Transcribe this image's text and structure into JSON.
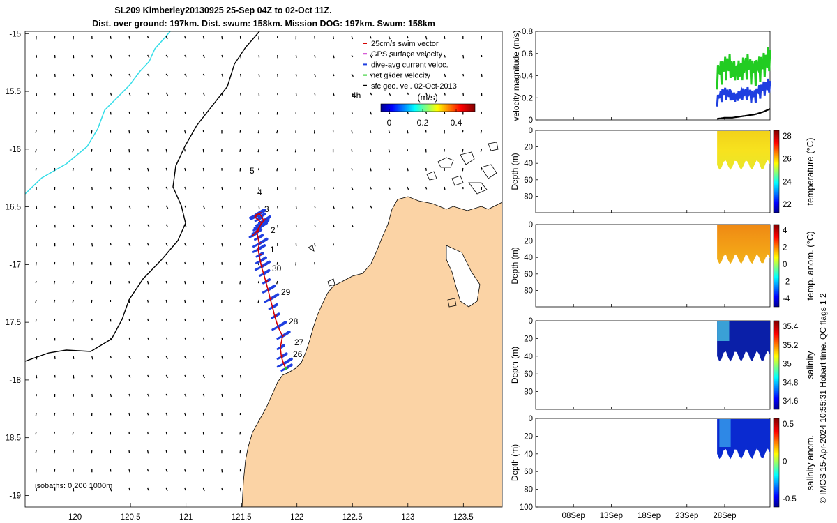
{
  "title_line1": "SL209 Kimberley20130925 25-Sep 04Z to 02-Oct 11Z.",
  "title_line2": "Dist. over ground: 197km. Dist. swum: 158km. Mission DOG: 197km. Swum: 158km",
  "map": {
    "lon_ticks": [
      "120",
      "120.5",
      "121",
      "121.5",
      "122",
      "122.5",
      "123",
      "123.5"
    ],
    "lat_ticks": [
      "-15",
      "15.5",
      "-16",
      "16.5",
      "-17",
      "17.5",
      "-18",
      "18.5",
      "-19"
    ],
    "legend": [
      {
        "label": "25cm/s swim vector",
        "color": "#d40000"
      },
      {
        "label": "GPS surface velocity",
        "color": "#cc33cc"
      },
      {
        "label": "dive-avg current veloc.",
        "color": "#1f3fe0"
      },
      {
        "label": "net glider velocity",
        "color": "#22cc22"
      },
      {
        "label": "sfc geo. vel. 02-Oct-2013",
        "color": "#000000"
      }
    ],
    "colorbar_label": "(m/s)",
    "colorbar_ticks": [
      "0",
      "0.2",
      "0.4"
    ],
    "age_label": "4h",
    "day_labels": [
      {
        "t": "5"
      },
      {
        "t": "4"
      },
      {
        "t": "3"
      },
      {
        "t": "2"
      },
      {
        "t": "1"
      },
      {
        "t": "30"
      },
      {
        "t": "29"
      },
      {
        "t": "28"
      },
      {
        "t": "27"
      },
      {
        "t": "26"
      }
    ],
    "isobaths": "isobaths: 0   200  1000m"
  },
  "panels": [
    {
      "ylabel": "velocity magnitude (m/s)",
      "yticks": [
        "0.8",
        "0.6",
        "0.4",
        "0.2",
        "0"
      ]
    },
    {
      "ylabel": "Depth (m)",
      "yticks": [
        "0",
        "20",
        "40",
        "60",
        "80"
      ],
      "cb_label": "temperature (°C)",
      "cb_ticks": [
        "28",
        "26",
        "24",
        "22"
      ]
    },
    {
      "ylabel": "Depth (m)",
      "yticks": [
        "0",
        "20",
        "40",
        "60",
        "80"
      ],
      "cb_label": "temp. anom. (°C)",
      "cb_ticks": [
        "4",
        "2",
        "0",
        "-2",
        "-4"
      ]
    },
    {
      "ylabel": "Depth (m)",
      "yticks": [
        "0",
        "20",
        "40",
        "60",
        "80"
      ],
      "cb_label": "salinity",
      "cb_ticks": [
        "35.4",
        "35.2",
        "35",
        "34.8",
        "34.6"
      ]
    },
    {
      "ylabel": "Depth (m)",
      "yticks": [
        "0",
        "20",
        "40",
        "60",
        "80",
        "100"
      ],
      "cb_label": "salinity anom.",
      "cb_ticks": [
        "0.5",
        "0",
        "-0.5"
      ]
    }
  ],
  "time_ticks": [
    "08Sep",
    "13Sep",
    "18Sep",
    "23Sep",
    "28Sep"
  ],
  "side_text": "© IMOS 15-Apr-2024 10:55:31 Hobart time. QC flags 1  2",
  "chart_data": {
    "type": "line",
    "title": "SL209 Kimberley20130925 25-Sep 04Z to 02-Oct 11Z.",
    "map_xlim": [
      119.55,
      123.85
    ],
    "map_ylim": [
      -19.1,
      -14.98
    ],
    "glider_track": {
      "lon": [
        121.9,
        121.88,
        121.86,
        121.85,
        121.87,
        121.83,
        121.8,
        121.78,
        121.76,
        121.74,
        121.72,
        121.7,
        121.68,
        121.67,
        121.66,
        121.65,
        121.66,
        121.65,
        121.64,
        121.66,
        121.68,
        121.65,
        121.62,
        121.63,
        121.66,
        121.68,
        121.7,
        121.67,
        121.63,
        121.6
      ],
      "lat": [
        -17.9,
        -17.86,
        -17.8,
        -17.72,
        -17.62,
        -17.54,
        -17.45,
        -17.37,
        -17.3,
        -17.22,
        -17.15,
        -17.08,
        -17.02,
        -16.97,
        -16.92,
        -16.87,
        -16.82,
        -16.77,
        -16.72,
        -16.68,
        -16.64,
        -16.61,
        -16.59,
        -16.57,
        -16.56,
        -16.58,
        -16.62,
        -16.66,
        -16.72,
        -16.75
      ]
    },
    "time_xlim": [
      3,
      34
    ],
    "velocity_series": [
      {
        "name": "net glider velocity",
        "x": [
          27,
          27.8,
          28.6,
          29.4,
          30.2,
          31,
          31.8,
          32.6,
          33.4,
          34
        ],
        "y": [
          0.5,
          0.56,
          0.6,
          0.52,
          0.55,
          0.6,
          0.53,
          0.58,
          0.62,
          0.68
        ]
      },
      {
        "name": "dive-avg current veloc.",
        "x": [
          27,
          27.8,
          28.6,
          29.4,
          30.2,
          31,
          31.8,
          32.6,
          33.4,
          34
        ],
        "y": [
          0.22,
          0.3,
          0.28,
          0.24,
          0.28,
          0.3,
          0.26,
          0.32,
          0.36,
          0.38
        ]
      },
      {
        "name": "sfc geo. vel. 02-Oct-2013",
        "x": [
          27,
          28,
          29,
          30,
          31,
          32,
          33,
          34
        ],
        "y": [
          0.01,
          0.02,
          0.02,
          0.03,
          0.04,
          0.05,
          0.07,
          0.1
        ]
      }
    ],
    "temperature_range": [
      21.2,
      28.8
    ],
    "temp_anom_range": [
      -4,
      4
    ],
    "salinity_range": [
      34.5,
      35.5
    ],
    "salinity_anom_range": [
      -0.5,
      0.5
    ],
    "depth_range": [
      0,
      100
    ]
  }
}
